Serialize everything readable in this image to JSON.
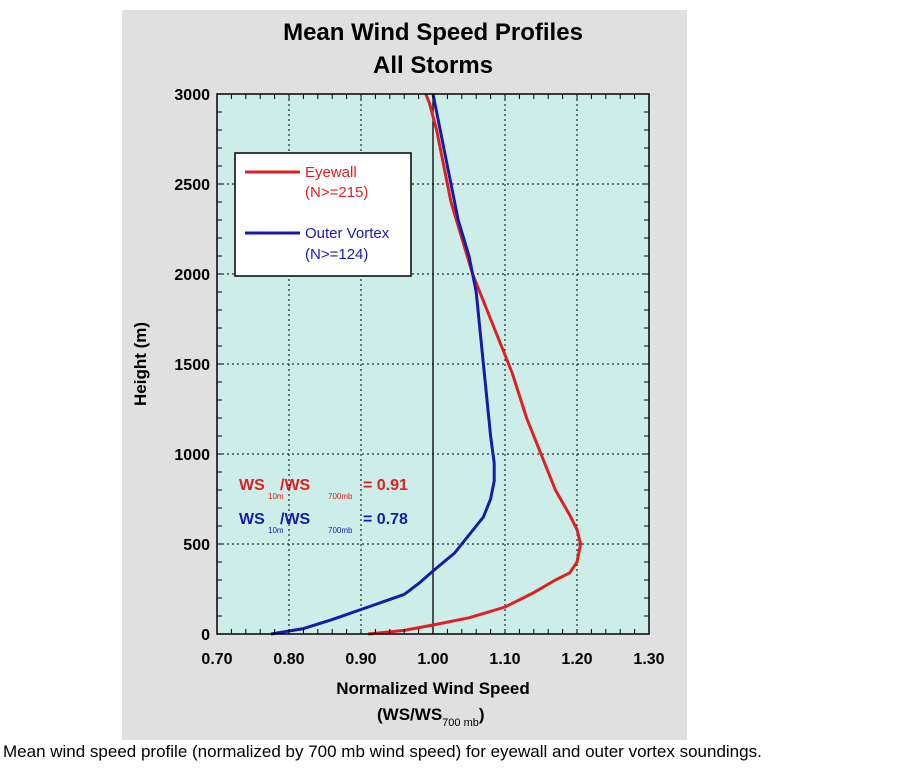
{
  "caption": "Mean wind speed profile (normalized by 700 mb wind speed) for eyewall and outer vortex soundings.",
  "colors": {
    "panel_bg": "#e0e0e0",
    "plot_bg": "#cdeee8",
    "eyewall": "#e02020",
    "outer_vortex": "#1a1aa8",
    "grid": "#000000"
  },
  "chart_data": {
    "type": "line",
    "title": "Mean Wind Speed Profiles",
    "subtitle": "All Storms",
    "xlabel": "Normalized Wind Speed",
    "xlabel_sub": "(WS/WS",
    "xlabel_sub_sub": "700 mb",
    "xlabel_sub_close": ")",
    "ylabel": "Height (m)",
    "xlim": [
      0.7,
      1.3
    ],
    "ylim": [
      0,
      3000
    ],
    "xticks": [
      "0.70",
      "0.80",
      "0.90",
      "1.00",
      "1.10",
      "1.20",
      "1.30"
    ],
    "yticks": [
      "0",
      "500",
      "1000",
      "1500",
      "2000",
      "2500",
      "3000"
    ],
    "grid": true,
    "reference_line_x": 1.0,
    "legend": {
      "position": "top-left",
      "entries": [
        {
          "label": "Eyewall",
          "count": "(N>=215)"
        },
        {
          "label": "Outer Vortex",
          "count": "(N>=124)"
        }
      ]
    },
    "annotations": [
      {
        "ws": "WS",
        "sub1": "10m",
        "slash": "/WS",
        "sub2": "700mb",
        "value": "= 0.91"
      },
      {
        "ws": "WS",
        "sub1": "10m",
        "slash": "/WS",
        "sub2": "700mb",
        "value": "= 0.78"
      }
    ],
    "series": [
      {
        "name": "Eyewall",
        "x": [
          0.91,
          0.96,
          1.0,
          1.05,
          1.1,
          1.14,
          1.17,
          1.19,
          1.2,
          1.205,
          1.2,
          1.19,
          1.17,
          1.15,
          1.13,
          1.11,
          1.095,
          1.075,
          1.055,
          1.04,
          1.025,
          1.015,
          1.005,
          0.995,
          0.99
        ],
        "y": [
          0,
          20,
          50,
          90,
          150,
          230,
          300,
          340,
          400,
          500,
          580,
          660,
          800,
          1000,
          1200,
          1450,
          1600,
          1800,
          2000,
          2200,
          2400,
          2600,
          2800,
          2950,
          3000
        ]
      },
      {
        "name": "Outer Vortex",
        "x": [
          0.775,
          0.82,
          0.86,
          0.91,
          0.96,
          0.98,
          1.0,
          1.03,
          1.05,
          1.07,
          1.08,
          1.085,
          1.085,
          1.08,
          1.075,
          1.07,
          1.065,
          1.06,
          1.05,
          1.035,
          1.025,
          1.015,
          1.005,
          1.0
        ],
        "y": [
          0,
          30,
          80,
          150,
          220,
          280,
          350,
          450,
          550,
          650,
          750,
          850,
          950,
          1100,
          1300,
          1500,
          1700,
          1900,
          2100,
          2300,
          2500,
          2700,
          2900,
          3000
        ]
      }
    ]
  }
}
